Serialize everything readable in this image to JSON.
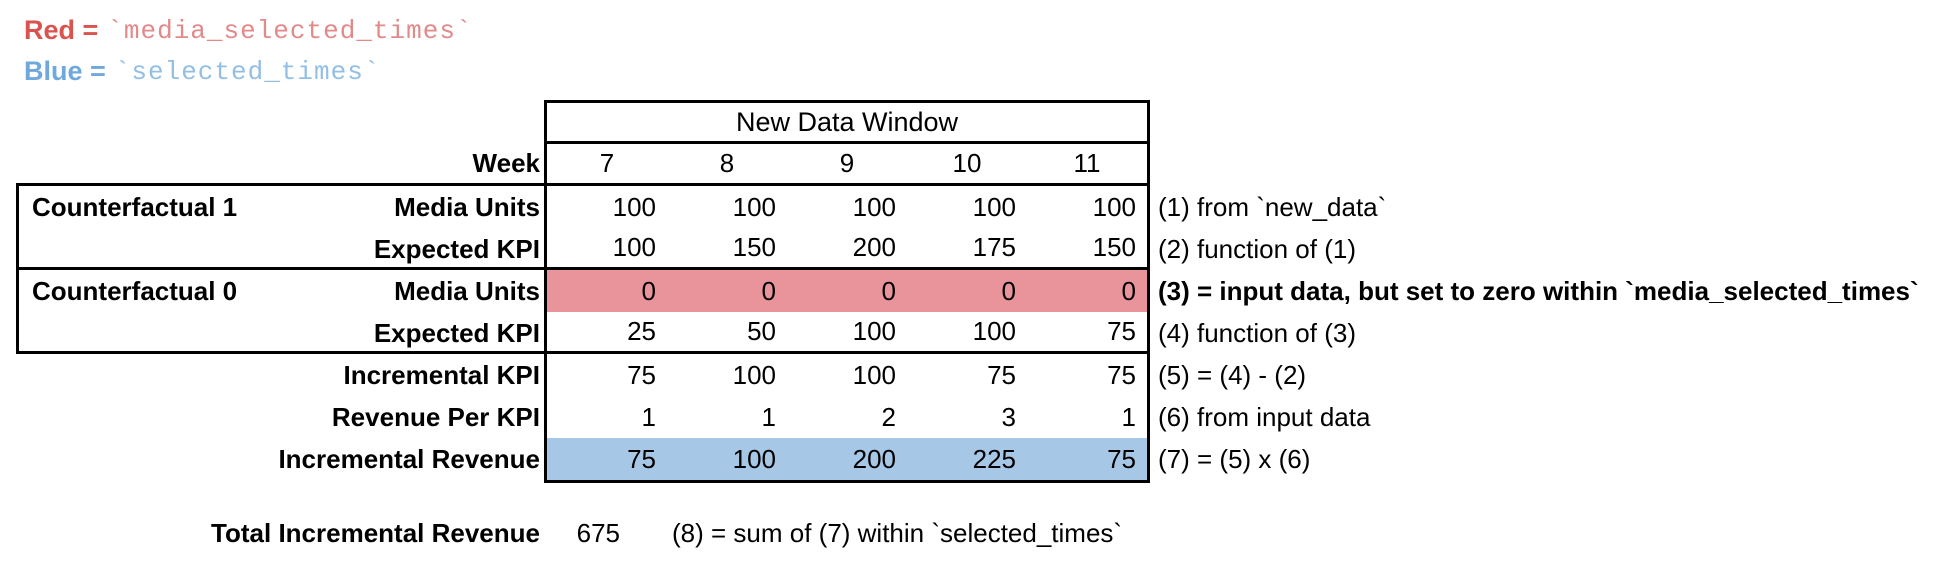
{
  "legend": {
    "red": {
      "label": "Red =",
      "code": "`media_selected_times`"
    },
    "blue": {
      "label": "Blue =",
      "code": "`selected_times`"
    }
  },
  "table": {
    "header": "New Data Window",
    "week_label": "Week",
    "weeks": [
      "7",
      "8",
      "9",
      "10",
      "11"
    ],
    "groups": [
      {
        "label": "Counterfactual 1"
      },
      {
        "label": "Counterfactual 0"
      }
    ],
    "rows": [
      {
        "label": "Media Units",
        "values": [
          "100",
          "100",
          "100",
          "100",
          "100"
        ],
        "annotation": "(1) from `new_data`"
      },
      {
        "label": "Expected KPI",
        "values": [
          "100",
          "150",
          "200",
          "175",
          "150"
        ],
        "annotation": "(2) function of (1)"
      },
      {
        "label": "Media Units",
        "values": [
          "0",
          "0",
          "0",
          "0",
          "0"
        ],
        "annotation": "(3) = input data, but set to zero within `media_selected_times`",
        "highlight": "red"
      },
      {
        "label": "Expected KPI",
        "values": [
          "25",
          "50",
          "100",
          "100",
          "75"
        ],
        "annotation": "(4) function of (3)"
      },
      {
        "label": "Incremental KPI",
        "values": [
          "75",
          "100",
          "100",
          "75",
          "75"
        ],
        "annotation": "(5) = (4) - (2)"
      },
      {
        "label": "Revenue Per KPI",
        "values": [
          "1",
          "1",
          "2",
          "3",
          "1"
        ],
        "annotation": "(6) from input data"
      },
      {
        "label": "Incremental Revenue",
        "values": [
          "75",
          "100",
          "200",
          "225",
          "75"
        ],
        "annotation": "(7) = (5) x (6)",
        "highlight": "blue"
      }
    ]
  },
  "totals": {
    "label": "Total Incremental Revenue",
    "value": "675",
    "annotation": "(8) = sum of (7) within `selected_times`"
  },
  "colors": {
    "red_highlight": "#E8949A",
    "blue_highlight": "#A7C7E7",
    "legend_red": "#D9534F",
    "legend_red_code": "#E28A8A",
    "legend_blue": "#6FA8DC",
    "legend_blue_code": "#92BFE6",
    "border": "#000000"
  }
}
